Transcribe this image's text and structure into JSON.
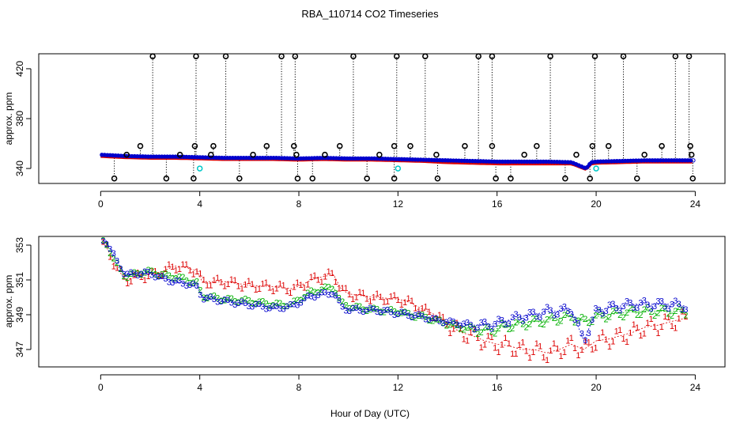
{
  "figure": {
    "title": "RBA_110714  CO2 Timeseries",
    "xlabel": "Hour of Day (UTC)"
  },
  "colors": {
    "black": "#000000",
    "red": "#dd0000",
    "green": "#00b000",
    "blue": "#0000cc",
    "cyan": "#00c8c8"
  },
  "chart_data": [
    {
      "type": "scatter",
      "panel": "top",
      "ylabel": "approx. ppm",
      "xlim": [
        0,
        24
      ],
      "ylim": [
        328,
        432
      ],
      "xticks": [
        0,
        4,
        8,
        12,
        16,
        20,
        24
      ],
      "yticks": [
        340,
        380,
        420
      ],
      "baseline": {
        "x": [
          0,
          1,
          2,
          3,
          4,
          5,
          6,
          7,
          8,
          9,
          10,
          11,
          12,
          13,
          14,
          15,
          16,
          17,
          18,
          19,
          19.6,
          19.8,
          20,
          21,
          22,
          23,
          24
        ],
        "blue": [
          351,
          350,
          349.5,
          349.5,
          349,
          348.5,
          348.5,
          348.5,
          348,
          348.5,
          348,
          348,
          347.5,
          347,
          346.5,
          346,
          345.5,
          345.5,
          345.5,
          345,
          340,
          345,
          345.5,
          346,
          346.5,
          346.5,
          346.5
        ],
        "red": [
          349.5,
          348.5,
          348,
          348,
          347.5,
          347,
          347,
          347,
          346.5,
          347,
          346.5,
          346.5,
          346,
          345.5,
          344.5,
          344,
          343.5,
          343.5,
          343.5,
          343.5,
          339,
          343.5,
          344,
          344.5,
          345,
          345,
          345
        ]
      },
      "spikes_high": [
        2.1,
        3.85,
        5.05,
        7.3,
        7.85,
        10.2,
        11.95,
        13.1,
        15.25,
        15.8,
        18.15,
        19.95,
        21.1,
        23.2,
        23.75
      ],
      "spikes_mid": [
        1.6,
        3.8,
        4.55,
        6.7,
        7.8,
        9.65,
        11.85,
        12.5,
        14.7,
        15.8,
        17.6,
        19.85,
        20.5,
        22.65,
        23.8
      ],
      "spikes_low": [
        1.05,
        3.2,
        4.45,
        6.15,
        7.9,
        9.05,
        11.25,
        13.55,
        17.1,
        19.2,
        21.95,
        23.85
      ],
      "dips": [
        0.55,
        2.65,
        3.75,
        5.6,
        7.95,
        8.55,
        10.75,
        11.85,
        13.6,
        15.95,
        16.55,
        18.75,
        19.75,
        21.65,
        23.9
      ],
      "cyan_dips": [
        4.0,
        12.0,
        20.0
      ],
      "high_value": 430,
      "mid_value": 358,
      "low_value": 351,
      "dip_value": 332,
      "cyan_value": 340
    },
    {
      "type": "scatter",
      "panel": "bottom",
      "ylabel": "approx. ppm",
      "xlim": [
        0,
        24
      ],
      "ylim": [
        346,
        353.5
      ],
      "xticks": [
        0,
        4,
        8,
        12,
        16,
        20,
        24
      ],
      "yticks": [
        347,
        349,
        351,
        353
      ],
      "series": [
        {
          "name": "1",
          "color": "red",
          "x": [
            0.2,
            0.6,
            1.0,
            1.5,
            2.0,
            2.5,
            3.0,
            3.5,
            3.9,
            4.1,
            5.0,
            6.0,
            7.0,
            7.7,
            8.1,
            8.5,
            9.0,
            9.4,
            9.7,
            10.0,
            11.0,
            12.0,
            12.5,
            13.0,
            13.5,
            14.0,
            14.5,
            15.0,
            15.5,
            16.0,
            16.5,
            17.0,
            17.5,
            18.0,
            18.5,
            19.0,
            19.5,
            20.0,
            20.5,
            21.0,
            21.5,
            22.0,
            22.5,
            23.0,
            23.6
          ],
          "y": [
            353.0,
            351.8,
            351.0,
            351.2,
            351.3,
            351.5,
            351.8,
            351.7,
            351.5,
            350.9,
            350.9,
            350.7,
            350.6,
            350.5,
            350.7,
            351.0,
            351.2,
            351.3,
            350.5,
            350.2,
            350.0,
            349.9,
            349.7,
            349.3,
            349.0,
            348.5,
            348.0,
            347.8,
            347.5,
            347.3,
            347.2,
            347.0,
            347.0,
            346.8,
            347.0,
            347.3,
            347.0,
            347.5,
            347.6,
            347.8,
            348.0,
            348.3,
            348.4,
            348.6,
            348.8
          ]
        },
        {
          "name": "2",
          "color": "green",
          "x": [
            0.2,
            0.6,
            1.0,
            1.5,
            2.0,
            2.5,
            3.0,
            3.5,
            3.9,
            4.1,
            5.0,
            6.0,
            7.0,
            7.7,
            8.1,
            8.5,
            9.0,
            9.4,
            9.7,
            10.0,
            11.0,
            12.0,
            12.5,
            13.0,
            13.5,
            14.0,
            14.5,
            15.0,
            15.5,
            16.0,
            16.5,
            17.0,
            17.5,
            18.0,
            18.5,
            19.0,
            19.5,
            20.0,
            20.5,
            21.0,
            21.5,
            22.0,
            22.5,
            23.0,
            23.6
          ],
          "y": [
            353.2,
            352.0,
            351.2,
            351.4,
            351.5,
            351.3,
            351.2,
            351.0,
            350.8,
            350.1,
            349.9,
            349.8,
            349.6,
            349.6,
            350.0,
            350.3,
            350.5,
            350.6,
            349.7,
            349.5,
            349.3,
            349.2,
            349.0,
            348.9,
            348.7,
            348.5,
            348.3,
            348.2,
            348.1,
            348.2,
            348.4,
            348.5,
            348.6,
            348.7,
            348.8,
            348.9,
            348.6,
            348.9,
            349.0,
            349.1,
            349.2,
            349.2,
            349.2,
            349.2,
            349.2
          ]
        },
        {
          "name": "3",
          "color": "blue",
          "x": [
            0.2,
            0.6,
            1.0,
            1.5,
            2.0,
            2.5,
            3.0,
            3.5,
            3.9,
            4.1,
            5.0,
            6.0,
            7.0,
            7.7,
            8.1,
            8.5,
            9.0,
            9.4,
            9.7,
            10.0,
            11.0,
            12.0,
            12.5,
            13.0,
            13.5,
            14.0,
            14.5,
            15.0,
            15.5,
            16.0,
            16.5,
            17.0,
            17.5,
            18.0,
            18.5,
            19.0,
            19.5,
            20.0,
            20.5,
            21.0,
            21.5,
            22.0,
            22.5,
            23.0,
            23.6
          ],
          "y": [
            353.3,
            352.2,
            351.3,
            351.4,
            351.4,
            351.1,
            350.9,
            350.8,
            350.6,
            350.0,
            349.8,
            349.6,
            349.4,
            349.5,
            349.8,
            350.1,
            350.2,
            350.3,
            349.5,
            349.3,
            349.3,
            349.1,
            349.0,
            348.9,
            348.7,
            348.6,
            348.5,
            348.4,
            348.4,
            348.5,
            348.7,
            348.9,
            349.0,
            349.2,
            349.2,
            349.3,
            347.5,
            349.2,
            349.4,
            349.5,
            349.6,
            349.6,
            349.6,
            349.6,
            349.5
          ]
        }
      ]
    }
  ]
}
